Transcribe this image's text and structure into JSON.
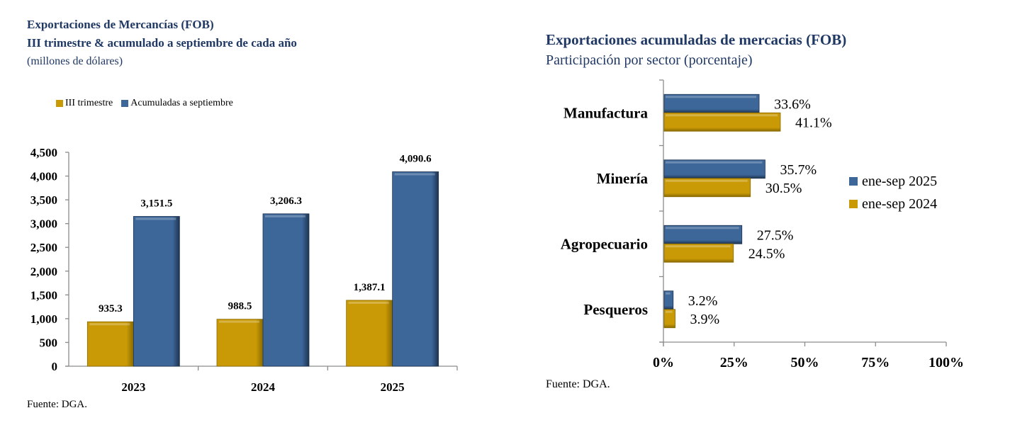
{
  "colors": {
    "title": "#1F3864",
    "gold": "#C99A06",
    "gold_dark": "#8A6A00",
    "blue": "#3D6699",
    "blue_dark": "#1E3450",
    "axis": "#8C8C8C"
  },
  "left": {
    "title": "Exportaciones de Mercancías (FOB)",
    "subtitle": "III trimestre & acumulado a septiembre de cada año",
    "units": "(millones de dólares)",
    "source": "Fuente: DGA."
  },
  "right": {
    "title": "Exportaciones acumuladas de mercacias (FOB)",
    "subtitle": "Participación por sector (porcentaje)",
    "source": "Fuente: DGA."
  },
  "chart_data": [
    {
      "type": "bar",
      "orientation": "vertical",
      "title": "Exportaciones de Mercancías (FOB)",
      "subtitle": "III trimestre & acumulado a septiembre de cada año",
      "ylabel": "(millones de dólares)",
      "xlabel": "",
      "categories": [
        "2023",
        "2024",
        "2025"
      ],
      "series": [
        {
          "name": "III trimestre",
          "color": "#C99A06",
          "values": [
            935.3,
            988.5,
            1387.1
          ],
          "labels": [
            "935.3",
            "988.5",
            "1,387.1"
          ]
        },
        {
          "name": "Acumuladas a septiembre",
          "color": "#3D6699",
          "values": [
            3151.5,
            3206.3,
            4090.6
          ],
          "labels": [
            "3,151.5",
            "3,206.3",
            "4,090.6"
          ]
        }
      ],
      "ylim": [
        0,
        4500
      ],
      "yticks": [
        0,
        500,
        1000,
        1500,
        2000,
        2500,
        3000,
        3500,
        4000,
        4500
      ],
      "ytick_labels": [
        "0",
        "500",
        "1,000",
        "1,500",
        "2,000",
        "2,500",
        "3,000",
        "3,500",
        "4,000",
        "4,500"
      ],
      "grid": false,
      "legend": "top-left"
    },
    {
      "type": "bar",
      "orientation": "horizontal",
      "title": "Exportaciones acumuladas de mercacias (FOB)",
      "subtitle": "Participación por sector (porcentaje)",
      "xlabel": "",
      "ylabel": "",
      "categories": [
        "Manufactura",
        "Minería",
        "Agropecuario",
        "Pesqueros"
      ],
      "series": [
        {
          "name": "ene-sep 2025",
          "color": "#3D6699",
          "values": [
            33.6,
            35.7,
            27.5,
            3.2
          ],
          "labels": [
            "33.6%",
            "35.7%",
            "27.5%",
            "3.2%"
          ]
        },
        {
          "name": "ene-sep 2024",
          "color": "#C99A06",
          "values": [
            41.1,
            30.5,
            24.5,
            3.9
          ],
          "labels": [
            "41.1%",
            "30.5%",
            "24.5%",
            "3.9%"
          ]
        }
      ],
      "xlim": [
        0,
        100
      ],
      "xticks": [
        0,
        25,
        50,
        75,
        100
      ],
      "xtick_labels": [
        "0%",
        "25%",
        "50%",
        "75%",
        "100%"
      ],
      "grid": false,
      "legend": "right"
    }
  ]
}
